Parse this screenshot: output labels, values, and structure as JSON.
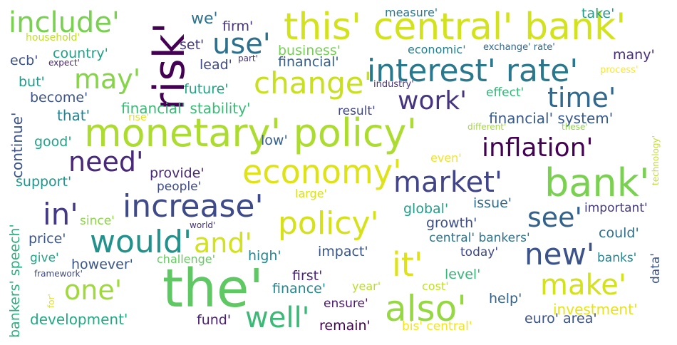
{
  "words": [
    {
      "text": "the'",
      "color": "#5ec962"
    },
    {
      "text": "monetary' policy'",
      "color": "#addc30"
    },
    {
      "text": "bank'",
      "color": "#7ad151"
    },
    {
      "text": "this' central' bank'",
      "color": "#d2e21b"
    },
    {
      "text": "risk'",
      "color": "#440154"
    },
    {
      "text": "economy'",
      "color": "#dde318"
    },
    {
      "text": "also'",
      "color": "#95d840"
    },
    {
      "text": "interest' rate'",
      "color": "#2a788e"
    },
    {
      "text": "increase'",
      "color": "#3e4a89"
    },
    {
      "text": "would'",
      "color": "#21918c"
    },
    {
      "text": "policy'",
      "color": "#d5e21a"
    },
    {
      "text": "change'",
      "color": "#c8e020"
    },
    {
      "text": "market'",
      "color": "#414487"
    },
    {
      "text": "new'",
      "color": "#3b528b"
    },
    {
      "text": "it'",
      "color": "#dde318"
    },
    {
      "text": "make'",
      "color": "#d2e21b"
    },
    {
      "text": "inflation'",
      "color": "#440154"
    },
    {
      "text": "time'",
      "color": "#31688e"
    },
    {
      "text": "use'",
      "color": "#2d708e"
    },
    {
      "text": "include'",
      "color": "#7ad151"
    },
    {
      "text": "may'",
      "color": "#86d549"
    },
    {
      "text": "need'",
      "color": "#482878"
    },
    {
      "text": "in'",
      "color": "#443983"
    },
    {
      "text": "one'",
      "color": "#9fda3a"
    },
    {
      "text": "well'",
      "color": "#3aba76"
    },
    {
      "text": "and'",
      "color": "#d2e21b"
    },
    {
      "text": "work'",
      "color": "#463480"
    },
    {
      "text": "see'",
      "color": "#33638d"
    },
    {
      "text": "financial' stability'",
      "color": "#3aba76"
    },
    {
      "text": "financial' system'",
      "color": "#38598c"
    },
    {
      "text": "development'",
      "color": "#22a884"
    },
    {
      "text": "investment'",
      "color": "#e5e419"
    },
    {
      "text": "country'",
      "color": "#1fa187"
    },
    {
      "text": "business'",
      "color": "#75d054"
    },
    {
      "text": "financial'",
      "color": "#355f8d"
    },
    {
      "text": "economic'",
      "color": "#27808e"
    },
    {
      "text": "exchange' rate'",
      "color": "#31688e"
    },
    {
      "text": "household'",
      "color": "#c2df23"
    },
    {
      "text": "expect'",
      "color": "#482576"
    },
    {
      "text": "part'",
      "color": "#46327e"
    },
    {
      "text": "ecb'",
      "color": "#3b528b"
    },
    {
      "text": "lead'",
      "color": "#3e4a89"
    },
    {
      "text": "set'",
      "color": "#453781"
    },
    {
      "text": "we'",
      "color": "#2c728e"
    },
    {
      "text": "firm'",
      "color": "#46327e"
    },
    {
      "text": "measure'",
      "color": "#2a788e"
    },
    {
      "text": "take'",
      "color": "#1f9e89"
    },
    {
      "text": "many'",
      "color": "#472d7b"
    },
    {
      "text": "process'",
      "color": "#fde725"
    },
    {
      "text": "industry'",
      "color": "#46337e"
    },
    {
      "text": "but'",
      "color": "#1e9b8a"
    },
    {
      "text": "become'",
      "color": "#3b528b"
    },
    {
      "text": "that'",
      "color": "#26828e"
    },
    {
      "text": "rise'",
      "color": "#e2e418"
    },
    {
      "text": "future'",
      "color": "#20a486"
    },
    {
      "text": "effect'",
      "color": "#35b779"
    },
    {
      "text": "result'",
      "color": "#404688"
    },
    {
      "text": "different'",
      "color": "#a2da37"
    },
    {
      "text": "these'",
      "color": "#8ed645"
    },
    {
      "text": "good'",
      "color": "#20a486"
    },
    {
      "text": "low'",
      "color": "#355f8d"
    },
    {
      "text": "even'",
      "color": "#f1e51d"
    },
    {
      "text": "continue'",
      "color": "#3b528b"
    },
    {
      "text": "provide'",
      "color": "#482878"
    },
    {
      "text": "people'",
      "color": "#3e4989"
    },
    {
      "text": "support'",
      "color": "#1f968b"
    },
    {
      "text": "large'",
      "color": "#d8e219"
    },
    {
      "text": "issue'",
      "color": "#2f6c8e"
    },
    {
      "text": "global'",
      "color": "#1fa088"
    },
    {
      "text": "important'",
      "color": "#443a83"
    },
    {
      "text": "since'",
      "color": "#8bd646"
    },
    {
      "text": "world'",
      "color": "#46327e"
    },
    {
      "text": "growth'",
      "color": "#3d4e8a"
    },
    {
      "text": "price'",
      "color": "#3a548c"
    },
    {
      "text": "central' bankers'",
      "color": "#2c718e"
    },
    {
      "text": "could'",
      "color": "#2d708e"
    },
    {
      "text": "give'",
      "color": "#20a486"
    },
    {
      "text": "however'",
      "color": "#39568c"
    },
    {
      "text": "challenge'",
      "color": "#63cb5f"
    },
    {
      "text": "high'",
      "color": "#24868e"
    },
    {
      "text": "impact'",
      "color": "#39568c"
    },
    {
      "text": "today'",
      "color": "#3f4788"
    },
    {
      "text": "banks'",
      "color": "#26828e"
    },
    {
      "text": "framework'",
      "color": "#3e4a89"
    },
    {
      "text": "level'",
      "color": "#35b779"
    },
    {
      "text": "first'",
      "color": "#482475"
    },
    {
      "text": "finance'",
      "color": "#23898e"
    },
    {
      "text": "year'",
      "color": "#bade28"
    },
    {
      "text": "cost'",
      "color": "#c2df23"
    },
    {
      "text": "help'",
      "color": "#33638d"
    },
    {
      "text": "ensure'",
      "color": "#481a6c"
    },
    {
      "text": "fund'",
      "color": "#482173"
    },
    {
      "text": "remain'",
      "color": "#440154"
    },
    {
      "text": "bis' central'",
      "color": "#f1e51d"
    },
    {
      "text": "euro' area'",
      "color": "#3b528b"
    },
    {
      "text": "for'",
      "color": "#dde318"
    },
    {
      "text": "bankers' speech'",
      "color": "#2ab07f"
    },
    {
      "text": "technology'",
      "color": "#c2df23"
    },
    {
      "text": "data'",
      "color": "#3b528b"
    }
  ]
}
